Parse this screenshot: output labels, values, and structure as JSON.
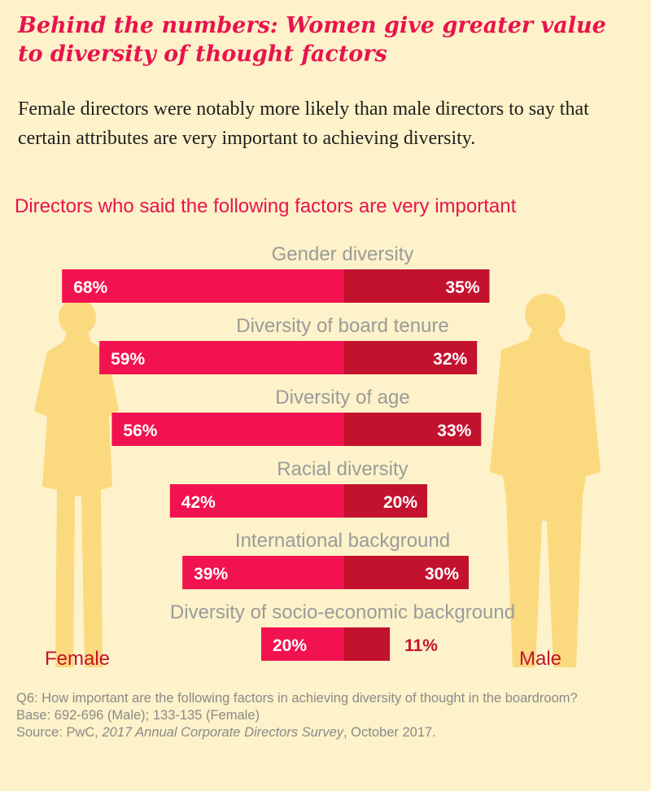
{
  "title": "Behind the numbers: Women give greater value to diversity of thought factors",
  "intro": "Female directors were notably more likely than male directors to say that certain attributes are very important to achieving diversity.",
  "subtitle": "Directors who said the following factors are very important",
  "labels": {
    "female": "Female",
    "male": "Male"
  },
  "footnote": {
    "question": "Q6: How important are the following factors in achieving diversity of thought in the boardroom?",
    "base": "Base: 692-696 (Male); 133-135 (Female)",
    "source_prefix": "Source: PwC, ",
    "source_title": "2017 Annual Corporate Directors Survey",
    "source_suffix": ", October 2017."
  },
  "colors": {
    "background": "#fdf2c9",
    "female_bar": "#f2124f",
    "male_bar": "#c3122e",
    "category_label": "#9b9b9b",
    "silhouette": "#fbd97e",
    "accent": "#e8134e"
  },
  "chart_data": {
    "type": "bar",
    "orientation": "diverging-horizontal",
    "categories": [
      "Gender diversity",
      "Diversity of board tenure",
      "Diversity of age",
      "Racial diversity",
      "International background",
      "Diversity of socio-economic background"
    ],
    "series": [
      {
        "name": "Female",
        "values": [
          68,
          59,
          56,
          42,
          39,
          20
        ]
      },
      {
        "name": "Male",
        "values": [
          35,
          32,
          33,
          20,
          30,
          11
        ]
      }
    ],
    "value_labels": {
      "Female": [
        "68%",
        "59%",
        "56%",
        "42%",
        "39%",
        "20%"
      ],
      "Male": [
        "35%",
        "32%",
        "33%",
        "20%",
        "30%",
        "11%"
      ]
    },
    "value_unit": "%",
    "xlim": [
      0,
      70
    ]
  }
}
